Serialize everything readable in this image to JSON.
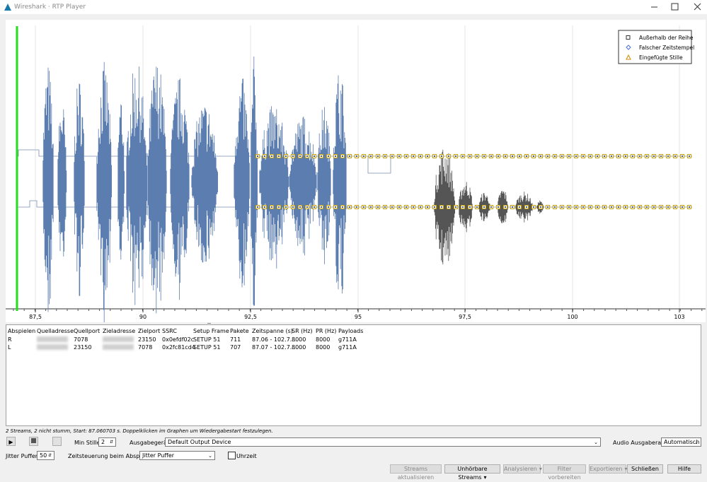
{
  "window": {
    "title": "Wireshark · RTP Player"
  },
  "graph": {
    "axis_labels": [
      "87,5",
      "90",
      "92,5",
      "95",
      "97,5",
      "100",
      "103"
    ],
    "legend": [
      "Außerhalb der Reihe",
      "Falscher Zeitstempel",
      "Eingefügte Stille"
    ]
  },
  "table": {
    "headers": [
      "Abspielen",
      "Quelladresse",
      "Quellport",
      "Zieladresse",
      "Zielport",
      "SSRC",
      "Setup Frame",
      "Pakete",
      "Zeitspanne (s)",
      "SR (Hz)",
      "PR (Hz)",
      "Payloads"
    ],
    "rows": [
      [
        "R",
        null,
        7078,
        null,
        23150,
        "0x0efdf02c",
        "SETUP 51",
        711,
        "87.06 - 102.7...",
        8000,
        8000,
        "g711A"
      ],
      [
        "L",
        null,
        23150,
        null,
        7078,
        "0x2fc81cd4",
        "SETUP 51",
        707,
        "87.07 - 102.7...",
        8000,
        8000,
        "g711A"
      ]
    ]
  },
  "status": "2 Streams, 2 nicht stumm, Start: 87.060703 s. Doppelklicken im Graphen um Wiedergabestart festzulegen.",
  "controls": {
    "min_silence_label": "Min Stille:",
    "min_silence_value": 2,
    "output_device_label": "Ausgabegerät:",
    "output_device": "Default Output Device",
    "audio_rate_label": "Audio Ausgaberate:",
    "audio_rate": "Automatisch",
    "jitter_label": "Jitter Puffer:",
    "jitter_value": 50,
    "timing_label": "Zeitsteuerung beim Abspielen:",
    "timing_value": "Jitter Puffer",
    "clock_label": "Uhrzeit"
  },
  "buttons": [
    "Streams aktualisieren",
    "Unhörbare Streams",
    "Analysieren",
    "Filter vorbereiten",
    "Exportieren",
    "Schließen",
    "Hilfe"
  ]
}
